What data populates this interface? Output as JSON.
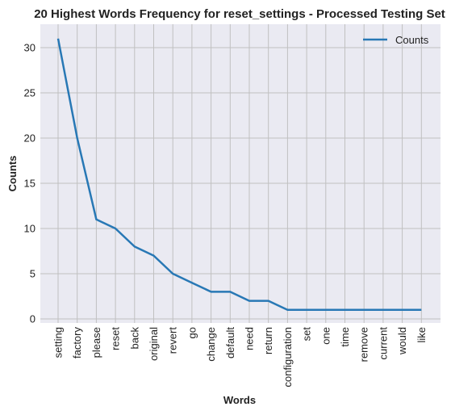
{
  "chart_data": {
    "type": "line",
    "title": "20 Highest Words Frequency for reset_settings - Processed Testing Set",
    "xlabel": "Words",
    "ylabel": "Counts",
    "ylim": [
      0,
      32
    ],
    "yticks": [
      0,
      5,
      10,
      15,
      20,
      25,
      30
    ],
    "grid": true,
    "legend_position": "top-right",
    "colors": {
      "series": "#2878b5",
      "background": "#eaeaf2",
      "grid": "#c0c0c0"
    },
    "categories": [
      "setting",
      "factory",
      "please",
      "reset",
      "back",
      "original",
      "revert",
      "go",
      "change",
      "default",
      "need",
      "return",
      "configuration",
      "set",
      "one",
      "time",
      "remove",
      "current",
      "would",
      "like"
    ],
    "series": [
      {
        "name": "Counts",
        "values": [
          31,
          20,
          11,
          10,
          8,
          7,
          5,
          4,
          3,
          3,
          2,
          2,
          1,
          1,
          1,
          1,
          1,
          1,
          1,
          1
        ]
      }
    ]
  }
}
